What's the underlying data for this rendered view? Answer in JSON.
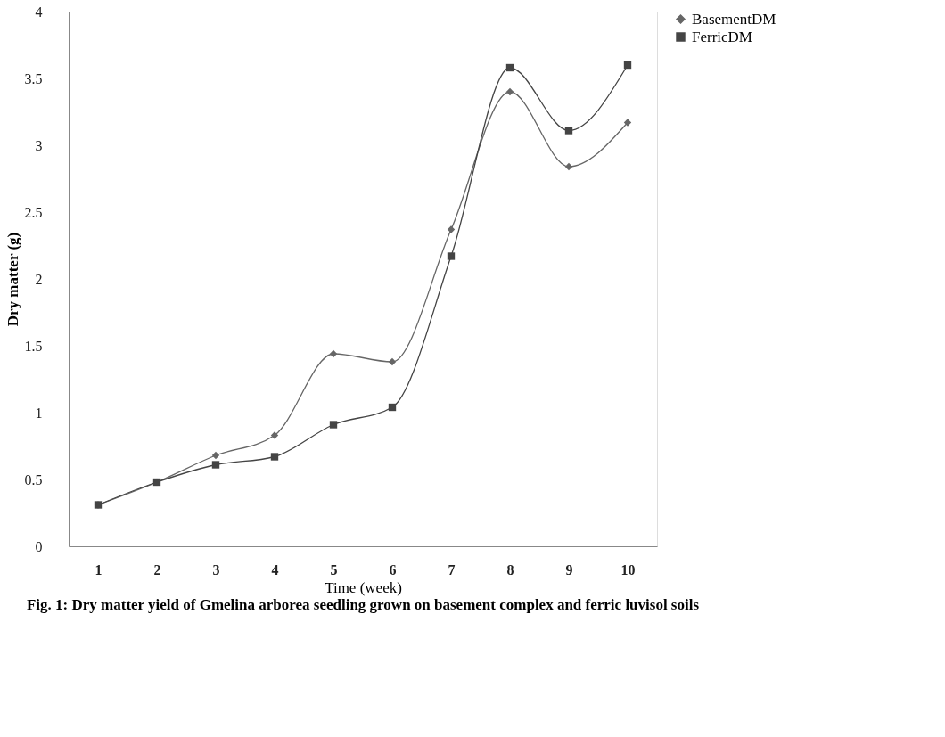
{
  "chart_data": {
    "type": "line",
    "title": "Fig. 1: Dry matter yield of Gmelina arborea seedling grown on basement complex and ferric luvisol soils",
    "xlabel": "Time (week)",
    "ylabel": "Dry matter (g)",
    "categories": [
      "1",
      "2",
      "3",
      "4",
      "5",
      "6",
      "7",
      "8",
      "9",
      "10"
    ],
    "series": [
      {
        "name": "BasementDM",
        "color": "#666666",
        "marker": "diamond",
        "values": [
          0.31,
          0.48,
          0.68,
          0.83,
          1.44,
          1.38,
          2.37,
          3.4,
          2.84,
          3.17
        ]
      },
      {
        "name": "FerricDM",
        "color": "#444444",
        "marker": "square",
        "values": [
          0.31,
          0.48,
          0.61,
          0.67,
          0.91,
          1.04,
          2.17,
          3.58,
          3.11,
          3.6
        ]
      }
    ],
    "ylim": [
      0,
      4
    ],
    "yticks": [
      0,
      0.5,
      1,
      1.5,
      2,
      2.5,
      3,
      3.5,
      4
    ],
    "grid": false,
    "legend": "right",
    "line_style": "solid"
  }
}
